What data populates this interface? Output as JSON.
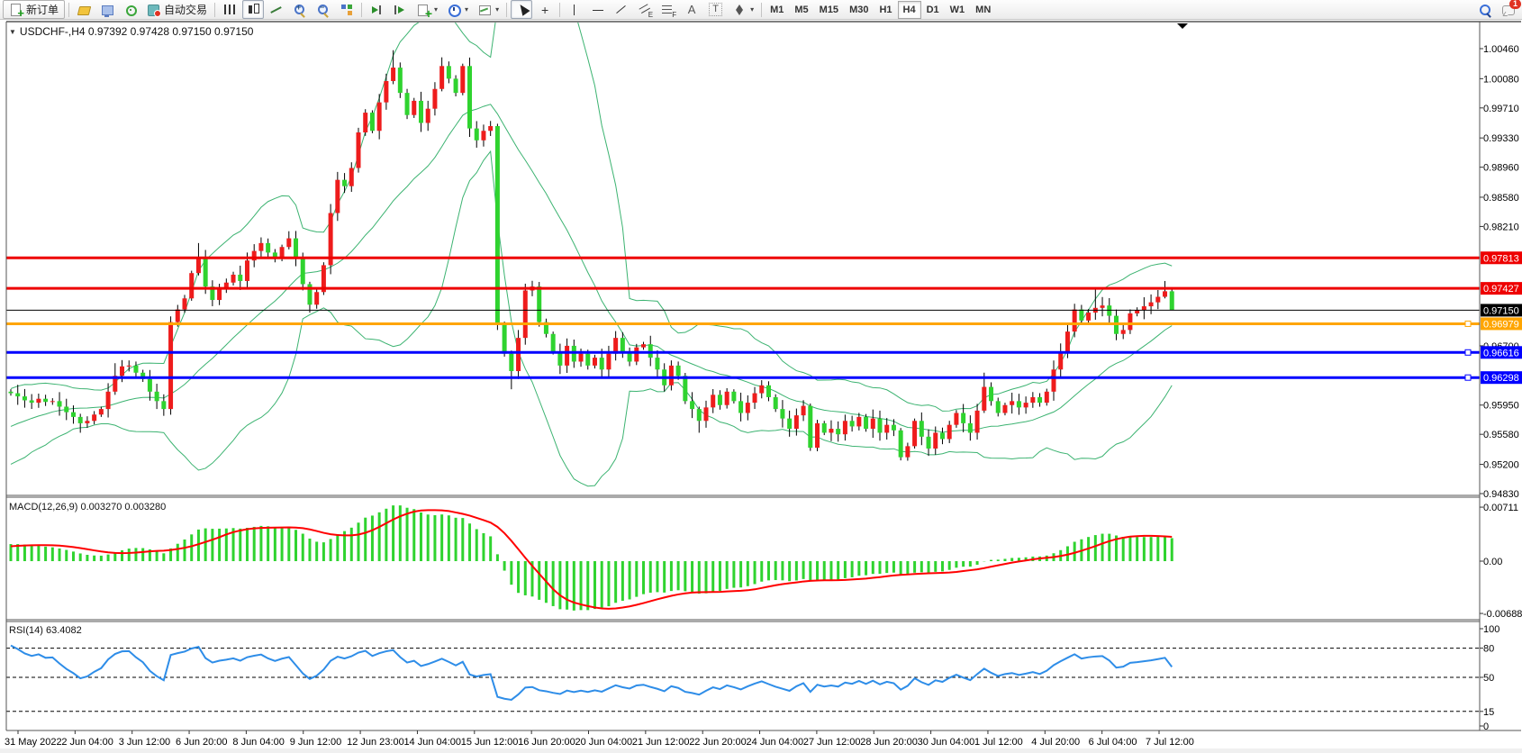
{
  "toolbar": {
    "items": [
      {
        "type": "button",
        "name": "new-order",
        "icon": "docplus",
        "label": "新订单",
        "bordered": true
      },
      {
        "type": "sep"
      },
      {
        "type": "button",
        "name": "market-watch",
        "icon": "cube"
      },
      {
        "type": "button",
        "name": "navigator",
        "icon": "monitor"
      },
      {
        "type": "button",
        "name": "sound-alert",
        "icon": "signal"
      },
      {
        "type": "button",
        "name": "auto-trading",
        "icon": "auto",
        "label": "自动交易"
      },
      {
        "type": "sep"
      },
      {
        "type": "button",
        "name": "bar-chart",
        "icon": "bars"
      },
      {
        "type": "button",
        "name": "candle-chart",
        "icon": "candles",
        "active": true
      },
      {
        "type": "button",
        "name": "line-chart",
        "icon": "linechart"
      },
      {
        "type": "button",
        "name": "zoom-in",
        "icon": "mag",
        "sign": "+"
      },
      {
        "type": "button",
        "name": "zoom-out",
        "icon": "mag",
        "sign": "−"
      },
      {
        "type": "button",
        "name": "tile-windows",
        "icon": "tiles"
      },
      {
        "type": "sep"
      },
      {
        "type": "button",
        "name": "auto-scroll",
        "icon": "autoscroll"
      },
      {
        "type": "button",
        "name": "chart-shift",
        "icon": "shift"
      },
      {
        "type": "button",
        "name": "indicators",
        "icon": "indplus",
        "dropdown": true
      },
      {
        "type": "button",
        "name": "periods",
        "icon": "clock",
        "dropdown": true
      },
      {
        "type": "button",
        "name": "templates",
        "icon": "template",
        "dropdown": true
      },
      {
        "type": "sep"
      },
      {
        "type": "button",
        "name": "cursor",
        "icon": "cursor",
        "active": true
      },
      {
        "type": "button",
        "name": "crosshair",
        "icon": "crosshair",
        "glyph": "+"
      },
      {
        "type": "sep"
      },
      {
        "type": "button",
        "name": "vertical-line",
        "icon": "vline"
      },
      {
        "type": "button",
        "name": "horizontal-line",
        "icon": "hline"
      },
      {
        "type": "button",
        "name": "trend-line",
        "icon": "tline"
      },
      {
        "type": "button",
        "name": "equidistant-channel",
        "icon": "channel"
      },
      {
        "type": "button",
        "name": "fibonacci",
        "icon": "fibo"
      },
      {
        "type": "button",
        "name": "text",
        "icon": "textA",
        "glyph": "A"
      },
      {
        "type": "button",
        "name": "text-label",
        "icon": "labelT",
        "glyph": "T"
      },
      {
        "type": "button",
        "name": "arrows",
        "icon": "arrows",
        "dropdown": true
      },
      {
        "type": "sep"
      }
    ],
    "timeframes": [
      "M1",
      "M5",
      "M15",
      "M30",
      "H1",
      "H4",
      "D1",
      "W1",
      "MN"
    ],
    "active_timeframe": "H4",
    "right_items": [
      {
        "type": "button",
        "name": "search",
        "icon": "magblue"
      },
      {
        "type": "button",
        "name": "notifications",
        "icon": "chat",
        "badge": "1"
      }
    ]
  },
  "chart": {
    "symbol_title": "USDCHF-,H4  0.97392 0.97428 0.97150 0.97150"
  },
  "chart_data": {
    "type": "candlestick",
    "symbol": "USDCHF-",
    "timeframe": "H4",
    "ohlc_display": [
      "0.97392",
      "0.97428",
      "0.97150",
      "0.97150"
    ],
    "ylim": [
      0.9483,
      1.0046
    ],
    "y_ticks": [
      "1.00460",
      "1.00080",
      "0.99710",
      "0.99330",
      "0.98960",
      "0.98580",
      "0.98210",
      "0.96700",
      "0.95950",
      "0.95580",
      "0.95200",
      "0.94830"
    ],
    "x_labels": [
      "31 May 2022",
      "2 Jun 04:00",
      "3 Jun 12:00",
      "6 Jun 20:00",
      "8 Jun 04:00",
      "9 Jun 12:00",
      "12 Jun 23:00",
      "14 Jun 04:00",
      "15 Jun 12:00",
      "16 Jun 20:00",
      "20 Jun 04:00",
      "21 Jun 12:00",
      "22 Jun 20:00",
      "24 Jun 04:00",
      "27 Jun 12:00",
      "28 Jun 20:00",
      "30 Jun 04:00",
      "1 Jul 12:00",
      "4 Jul 20:00",
      "6 Jul 04:00",
      "7 Jul 12:00"
    ],
    "candles": {
      "up_color": "#ee1c1c",
      "down_color": "#2fd32f",
      "wick_color": "#000000",
      "open_first": 0.9612,
      "closes": [
        0.961,
        0.9606,
        0.9601,
        0.9598,
        0.9603,
        0.9599,
        0.96,
        0.9593,
        0.9586,
        0.958,
        0.9572,
        0.9575,
        0.9583,
        0.959,
        0.9612,
        0.9632,
        0.9644,
        0.9645,
        0.9636,
        0.9628,
        0.9612,
        0.96,
        0.959,
        0.97,
        0.9716,
        0.973,
        0.9762,
        0.9782,
        0.9745,
        0.9728,
        0.9742,
        0.975,
        0.976,
        0.9752,
        0.9778,
        0.979,
        0.98,
        0.9788,
        0.978,
        0.9795,
        0.9806,
        0.978,
        0.9748,
        0.9722,
        0.9738,
        0.9772,
        0.9838,
        0.988,
        0.9872,
        0.9895,
        0.994,
        0.9965,
        0.9942,
        0.9978,
        1.0005,
        1.0022,
        0.999,
        0.9962,
        0.998,
        0.9952,
        0.997,
        0.9995,
        1.0024,
        1.0008,
        0.999,
        1.0024,
        0.9945,
        0.993,
        0.9942,
        0.9948,
        0.9697,
        0.966,
        0.9638,
        0.968,
        0.974,
        0.9745,
        0.97,
        0.9685,
        0.9662,
        0.9645,
        0.967,
        0.965,
        0.966,
        0.9645,
        0.9655,
        0.964,
        0.966,
        0.968,
        0.9662,
        0.965,
        0.9668,
        0.9672,
        0.9655,
        0.964,
        0.962,
        0.9645,
        0.9632,
        0.96,
        0.959,
        0.9575,
        0.9592,
        0.9608,
        0.9595,
        0.9612,
        0.96,
        0.9585,
        0.9598,
        0.961,
        0.962,
        0.9605,
        0.959,
        0.9578,
        0.9565,
        0.9582,
        0.9594,
        0.9541,
        0.9572,
        0.956,
        0.9565,
        0.9558,
        0.9575,
        0.9568,
        0.958,
        0.9565,
        0.9578,
        0.956,
        0.957,
        0.9563,
        0.9529,
        0.9543,
        0.9575,
        0.9555,
        0.954,
        0.956,
        0.9552,
        0.957,
        0.9585,
        0.9572,
        0.956,
        0.9588,
        0.9618,
        0.96,
        0.9585,
        0.9595,
        0.96,
        0.9592,
        0.9598,
        0.9605,
        0.9598,
        0.9612,
        0.964,
        0.9663,
        0.9688,
        0.9716,
        0.9702,
        0.9712,
        0.9718,
        0.9721,
        0.9708,
        0.9685,
        0.969,
        0.9711,
        0.9715,
        0.972,
        0.9725,
        0.9732,
        0.9739,
        0.9715
      ],
      "wick_overrides": {
        "10": [
          0.0004,
          0.0012
        ],
        "15": [
          0.0016,
          0.0004
        ],
        "27": [
          0.0018,
          0.0003
        ],
        "40": [
          0.0009,
          0.0003
        ],
        "43": [
          0.0003,
          0.001
        ],
        "55": [
          0.0022,
          0.0004
        ],
        "62": [
          0.0011,
          0.0003
        ],
        "70": [
          0.0003,
          0.0007
        ],
        "72": [
          0.0004,
          0.0023
        ],
        "99": [
          0.0003,
          0.0015
        ],
        "115": [
          0.0003,
          0.0004
        ],
        "128": [
          0.0003,
          0.0004
        ],
        "140": [
          0.0018,
          0.0003
        ],
        "156": [
          0.0026,
          0.0009
        ],
        "166": [
          0.0013,
          0.0002
        ],
        "167": [
          0.0004,
          0.0
        ]
      }
    },
    "indicator_warmup_closes": [
      0.95,
      0.9505,
      0.9512,
      0.9508,
      0.9518,
      0.9525,
      0.952,
      0.953,
      0.9538,
      0.9532,
      0.9544,
      0.955,
      0.9545,
      0.9556,
      0.956,
      0.9555,
      0.9565,
      0.9572,
      0.9568,
      0.9578,
      0.9585,
      0.958,
      0.959,
      0.9596,
      0.96,
      0.9605
    ],
    "bollinger": {
      "period": 20,
      "deviation": 2,
      "color": "#3CB371"
    },
    "horizontal_lines": [
      {
        "price": 0.97813,
        "label": "0.97813",
        "color": "#ee0000",
        "width": 3,
        "handle": false
      },
      {
        "price": 0.97427,
        "label": "0.97427",
        "color": "#ee0000",
        "width": 3,
        "handle": false
      },
      {
        "price": 0.96979,
        "label": "0.96979",
        "color": "#FFA500",
        "width": 3,
        "handle": true
      },
      {
        "price": 0.96616,
        "label": "0.96616",
        "color": "#0000ff",
        "width": 3,
        "handle": true
      },
      {
        "price": 0.96298,
        "label": "0.96298",
        "color": "#0000ff",
        "width": 3,
        "handle": true
      }
    ],
    "current_price": {
      "price": 0.9715,
      "label": "0.97150",
      "color": "#000000"
    },
    "macd": {
      "label": "MACD(12,26,9) 0.003270 0.003280",
      "params": [
        12,
        26,
        9
      ],
      "value": "0.003270",
      "signal_value": "0.003280",
      "axis_labels": [
        "0.00711",
        "0.00",
        "-0.006888"
      ],
      "hist_color": "#2fd32f",
      "signal_color": "#ff0000"
    },
    "rsi": {
      "label": "RSI(14) 63.4082",
      "period": 14,
      "value": "63.4082",
      "levels": [
        80,
        50,
        15
      ],
      "axis_labels": [
        "100",
        "80",
        "50",
        "15",
        "0"
      ],
      "color": "#2E8DE8"
    }
  }
}
